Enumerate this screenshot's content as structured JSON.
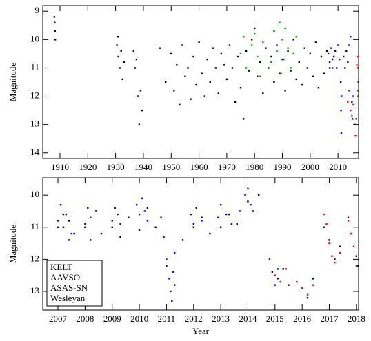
{
  "chart_data": [
    {
      "type": "scatter",
      "y_label": "Magnitude",
      "xlim": [
        1903.8,
        2017.4
      ],
      "xticks": [
        1910,
        1920,
        1930,
        1940,
        1950,
        1960,
        1970,
        1980,
        1990,
        2000,
        2010
      ],
      "ylim": [
        14.2,
        8.8
      ],
      "yticks": [
        9,
        10,
        11,
        12,
        13,
        14
      ],
      "series": [
        {
          "color": "#000000",
          "x": [
            1908.0,
            1908.1,
            1908.2,
            1908.3,
            1930.5,
            1931,
            1931.5,
            1932,
            1932.5,
            1933,
            1930.8,
            1936.5,
            1937,
            1937.5,
            1938,
            1938.5,
            1939,
            1939.5,
            1946,
            1948,
            1950,
            1951,
            1952,
            1953,
            1954,
            1955,
            1956,
            1957,
            1958,
            1959,
            1960,
            1961,
            1962,
            1963,
            1964,
            1965,
            1966,
            1967,
            1968,
            1969,
            1970,
            1971,
            1972,
            1973,
            1974,
            1975,
            1976,
            1977,
            1978,
            1979,
            1980,
            1981,
            1982,
            1983,
            1984,
            1985,
            1986,
            1987,
            1988,
            1989,
            1990,
            1991,
            1992,
            1993,
            1994,
            1995,
            1996,
            1997,
            1998,
            1999,
            2000,
            2001,
            2002,
            2003,
            2004,
            2005,
            2006,
            2007,
            2008
          ],
          "values": [
            9.2,
            9.4,
            9.7,
            10.0,
            10.2,
            10.6,
            11.0,
            10.4,
            11.4,
            10.8,
            9.9,
            10.4,
            11.0,
            10.7,
            12.0,
            13.0,
            11.8,
            12.5,
            10.3,
            11.5,
            10.5,
            11.8,
            10.9,
            12.3,
            10.2,
            11.3,
            11.0,
            12.1,
            10.6,
            11.6,
            10.1,
            11.2,
            12.0,
            10.7,
            11.5,
            10.3,
            11.0,
            11.9,
            10.5,
            10.9,
            11.4,
            10.2,
            11.0,
            12.2,
            10.6,
            11.7,
            12.8,
            10.4,
            11.1,
            10.0,
            9.6,
            11.3,
            10.8,
            11.9,
            10.3,
            11.0,
            10.6,
            11.5,
            10.2,
            11.2,
            10.7,
            11.8,
            10.4,
            11.1,
            10.0,
            11.4,
            10.8,
            11.6,
            10.3,
            11.0,
            10.5,
            11.3,
            10.1,
            11.7,
            10.6,
            11.2,
            10.4,
            11.0,
            10.7
          ]
        },
        {
          "color": "#00a000",
          "x": [
            1975,
            1976,
            1977,
            1979,
            1980,
            1981,
            1982,
            1983,
            1986,
            1987,
            1988,
            1989,
            1989.5,
            1990,
            1990.5,
            1991,
            1992,
            1993,
            1994,
            1995
          ],
          "values": [
            10.5,
            9.9,
            11.0,
            10.2,
            9.8,
            10.6,
            11.3,
            10.1,
            10.8,
            9.7,
            10.4,
            9.4,
            11.2,
            10.0,
            10.7,
            9.6,
            10.3,
            11.0,
            10.5,
            9.9
          ]
        },
        {
          "color": "#0000ff",
          "x": [
            2006.5,
            2007,
            2007.5,
            2008,
            2008.5,
            2009,
            2009.5,
            2010,
            2010.5,
            2011,
            2011.1,
            2011.2,
            2011.3,
            2012,
            2012.5,
            2013,
            2013.5,
            2014,
            2014.5,
            2015,
            2015.2,
            2015.5
          ],
          "values": [
            10.5,
            10.8,
            10.3,
            11.0,
            10.6,
            10.4,
            11.0,
            10.2,
            10.7,
            11.5,
            12.5,
            13.3,
            12.0,
            10.6,
            11.0,
            10.4,
            10.8,
            10.2,
            9.9,
            12.2,
            12.8,
            12.0
          ]
        },
        {
          "color": "#ff0000",
          "x": [
            2013.5,
            2014,
            2014.5,
            2015,
            2015.5,
            2016,
            2016.3,
            2016.6,
            2016.8,
            2016.9,
            2017,
            2017.1,
            2017.2,
            2017.3
          ],
          "values": [
            12.2,
            11.8,
            12.5,
            12.7,
            12.3,
            13.0,
            13.4,
            12.8,
            10.9,
            10.6,
            11.8,
            11.0,
            12.0,
            11.5
          ]
        }
      ]
    },
    {
      "type": "scatter",
      "x_label": "Year",
      "y_label": "Magnitude",
      "legend": "lower left",
      "xlim": [
        2006.44,
        2018.08
      ],
      "xticks": [
        2007,
        2008,
        2009,
        2010,
        2011,
        2012,
        2013,
        2014,
        2015,
        2016,
        2017,
        2018
      ],
      "ylim": [
        13.58,
        9.46
      ],
      "yticks": [
        10,
        11,
        12,
        13
      ],
      "series": [
        {
          "name": "KELT",
          "color": "#0000ff",
          "x": [
            2007.0,
            2007.1,
            2007.2,
            2007.3,
            2007.4,
            2007.5,
            2008.0,
            2008.1,
            2008.2,
            2009.0,
            2009.1,
            2009.2,
            2009.3,
            2009.9,
            2010.0,
            2010.1,
            2010.2,
            2010.3,
            2010.8,
            2010.9,
            2011.0,
            2011.1,
            2011.15,
            2011.2,
            2011.25,
            2011.3,
            2011.9,
            2012.0,
            2012.1,
            2012.3,
            2012.9,
            2013.0,
            2013.2,
            2013.4,
            2013.7,
            2013.9,
            2014.0,
            2014.1,
            2014.8,
            2014.9,
            2015.0,
            2015.1
          ],
          "values": [
            10.8,
            10.3,
            11.0,
            10.6,
            11.4,
            11.2,
            10.9,
            10.4,
            10.7,
            10.8,
            10.4,
            10.6,
            10.9,
            10.3,
            10.6,
            10.1,
            10.5,
            10.8,
            10.7,
            11.3,
            12.0,
            12.6,
            13.0,
            13.3,
            12.4,
            11.8,
            10.6,
            10.9,
            10.4,
            10.8,
            10.7,
            10.3,
            10.6,
            10.9,
            10.5,
            10.0,
            9.8,
            10.3,
            12.0,
            12.4,
            12.8,
            12.3
          ]
        },
        {
          "name": "AAVSO",
          "color": "#000000",
          "x": [
            2007.0,
            2007.2,
            2007.4,
            2007.6,
            2008.0,
            2008.2,
            2008.4,
            2008.6,
            2009.0,
            2009.3,
            2009.6,
            2010.0,
            2010.3,
            2010.6,
            2011.0,
            2011.3,
            2011.6,
            2012.0,
            2012.3,
            2012.6,
            2013.0,
            2013.3,
            2013.6,
            2014.0,
            2014.2,
            2014.4,
            2015.1,
            2015.3,
            2015.5,
            2016.0,
            2016.2,
            2016.4,
            2016.8,
            2017.0,
            2017.2,
            2017.4,
            2017.7,
            2017.8,
            2018.0,
            2018.05
          ],
          "values": [
            11.0,
            10.6,
            10.8,
            11.2,
            11.0,
            11.4,
            10.5,
            11.2,
            11.0,
            11.3,
            10.7,
            11.1,
            10.4,
            11.0,
            12.2,
            12.8,
            11.4,
            11.0,
            10.7,
            11.2,
            11.0,
            10.6,
            10.9,
            10.2,
            10.5,
            10.0,
            12.6,
            12.3,
            12.8,
            12.9,
            13.2,
            12.6,
            11.0,
            11.4,
            12.0,
            11.6,
            10.7,
            11.2,
            11.9,
            12.2
          ]
        },
        {
          "name": "ASAS-SN",
          "color": "#ff0000",
          "x": [
            2015.0,
            2015.2,
            2015.4,
            2015.8,
            2016.0,
            2016.2,
            2016.4,
            2016.8,
            2016.9,
            2017.0,
            2017.1,
            2017.2,
            2017.4,
            2017.7,
            2017.8,
            2017.9,
            2018.0
          ],
          "values": [
            12.5,
            12.7,
            12.3,
            12.7,
            12.9,
            13.1,
            12.8,
            10.6,
            10.9,
            11.5,
            11.9,
            12.1,
            11.8,
            10.8,
            11.2,
            11.6,
            12.2
          ]
        },
        {
          "name": "Wesleyan",
          "color": "#00a000",
          "x": [],
          "values": []
        }
      ]
    }
  ]
}
